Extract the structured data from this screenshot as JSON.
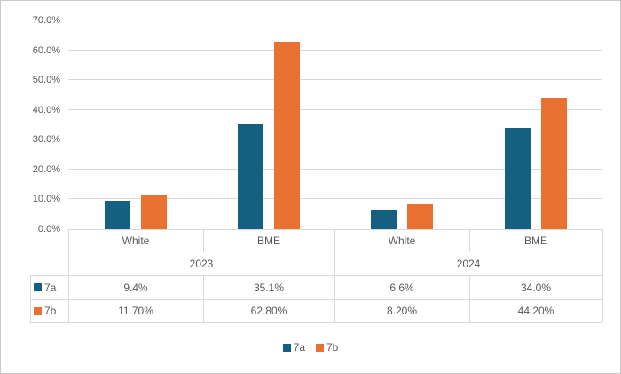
{
  "chart_data": {
    "type": "bar",
    "title": "",
    "xlabel": "",
    "ylabel": "",
    "ylim": [
      0,
      70
    ],
    "ytick_step": 10,
    "ytick_labels": [
      "0.0%",
      "10.0%",
      "20.0%",
      "30.0%",
      "40.0%",
      "50.0%",
      "60.0%",
      "70.0%"
    ],
    "grid": true,
    "legend_position": "bottom",
    "categories": [
      "White",
      "BME",
      "White",
      "BME"
    ],
    "category_groups": [
      {
        "label": "2023",
        "span": [
          0,
          1
        ]
      },
      {
        "label": "2024",
        "span": [
          2,
          3
        ]
      }
    ],
    "series": [
      {
        "name": "7a",
        "color": "#156082",
        "values": [
          9.4,
          35.1,
          6.6,
          34.0
        ],
        "display": [
          "9.4%",
          "35.1%",
          "6.6%",
          "34.0%"
        ]
      },
      {
        "name": "7b",
        "color": "#E97132",
        "values": [
          11.7,
          62.8,
          8.2,
          44.2
        ],
        "display": [
          "11.70%",
          "62.80%",
          "8.20%",
          "44.20%"
        ]
      }
    ]
  },
  "legend": {
    "items": [
      {
        "label": "7a",
        "color": "#156082"
      },
      {
        "label": "7b",
        "color": "#E97132"
      }
    ]
  },
  "colors": {
    "series_7a": "#156082",
    "series_7b": "#E97132",
    "gridline": "#D9D9D9",
    "table_border": "#D9D9D9",
    "text": "#595959",
    "outer_border": "#C9C9C9",
    "background": "#FFFFFF"
  }
}
